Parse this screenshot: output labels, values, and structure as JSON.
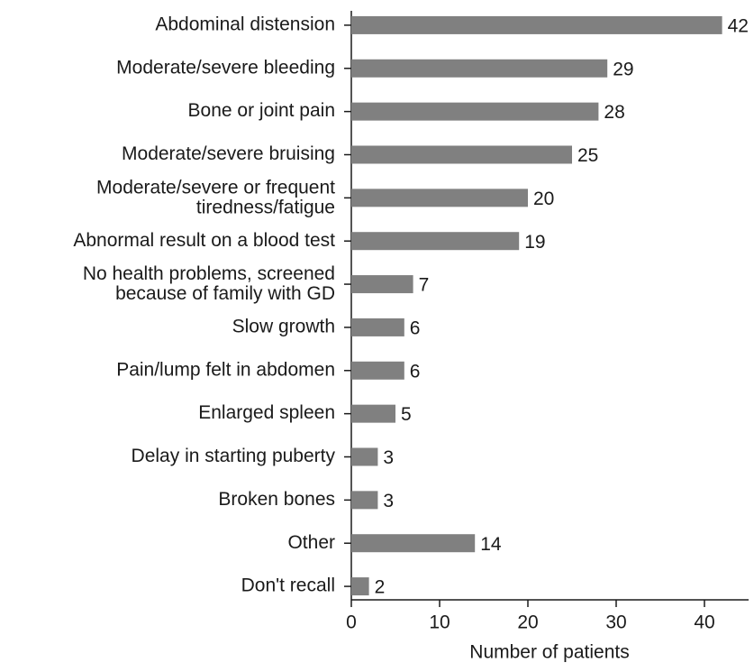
{
  "chart_data": {
    "type": "barh",
    "categories": [
      "Abdominal distension",
      "Moderate/severe bleeding",
      "Bone or joint pain",
      "Moderate/severe bruising",
      "Moderate/severe or frequent\ntiredness/fatigue",
      "Abnormal result on a blood test",
      "No health problems, screened\nbecause of family with GD",
      "Slow growth",
      "Pain/lump felt in abdomen",
      "Enlarged spleen",
      "Delay in starting puberty",
      "Broken bones",
      "Other",
      "Don't recall"
    ],
    "values": [
      42,
      29,
      28,
      25,
      20,
      19,
      7,
      6,
      6,
      5,
      3,
      3,
      14,
      2
    ],
    "color": "#808080",
    "xlabel": "Number of patients",
    "xlim": [
      0,
      45
    ],
    "xticks": [
      0,
      10,
      20,
      30,
      40
    ],
    "grid": false
  }
}
